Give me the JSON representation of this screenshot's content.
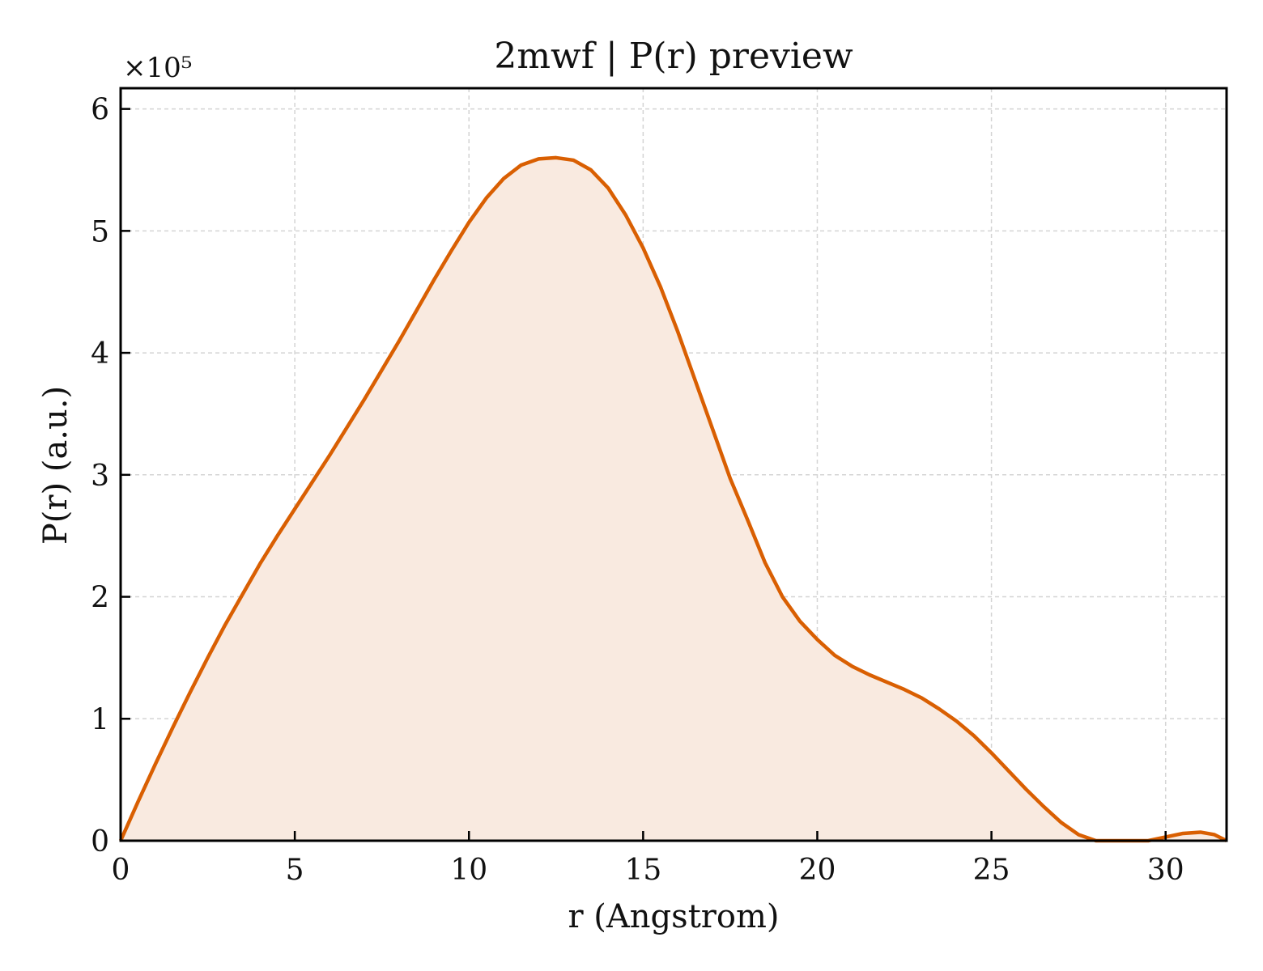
{
  "chart_data": {
    "type": "area",
    "title": "2mwf | P(r) preview",
    "xlabel": "r (Angstrom)",
    "ylabel": "P(r) (a.u.)",
    "y_scale_label": "×10⁵",
    "xlim": [
      0,
      31.75
    ],
    "ylim": [
      0,
      6.17
    ],
    "xticks": [
      0,
      5,
      10,
      15,
      20,
      25,
      30
    ],
    "yticks": [
      0,
      1,
      2,
      3,
      4,
      5,
      6
    ],
    "grid": true,
    "legend": "none",
    "line_color": "#d95f02",
    "fill_color": "#f9eae0",
    "series": [
      {
        "x": [
          0,
          0.5,
          1,
          1.5,
          2,
          2.5,
          3,
          3.5,
          4,
          4.5,
          5,
          5.5,
          6,
          6.5,
          7,
          7.5,
          8,
          8.5,
          9,
          9.5,
          10,
          10.5,
          11,
          11.5,
          12,
          12.5,
          13,
          13.5,
          14,
          14.5,
          15,
          15.5,
          16,
          16.5,
          17,
          17.5,
          18,
          18.5,
          19,
          19.5,
          20,
          20.5,
          21,
          21.5,
          22,
          22.5,
          23,
          23.5,
          24,
          24.5,
          25,
          25.5,
          26,
          26.5,
          27,
          27.5,
          28,
          28.5,
          29,
          29.5,
          30,
          30.5,
          31,
          31.4,
          31.75
        ],
        "y": [
          0,
          0.32,
          0.63,
          0.93,
          1.22,
          1.5,
          1.77,
          2.02,
          2.27,
          2.5,
          2.72,
          2.94,
          3.16,
          3.39,
          3.62,
          3.86,
          4.1,
          4.35,
          4.6,
          4.84,
          5.07,
          5.27,
          5.43,
          5.54,
          5.59,
          5.6,
          5.58,
          5.5,
          5.35,
          5.13,
          4.86,
          4.54,
          4.17,
          3.77,
          3.37,
          2.97,
          2.63,
          2.28,
          2.0,
          1.8,
          1.65,
          1.52,
          1.43,
          1.36,
          1.3,
          1.24,
          1.17,
          1.08,
          0.98,
          0.86,
          0.72,
          0.57,
          0.42,
          0.28,
          0.15,
          0.05,
          0.0,
          0.0,
          0.0,
          0.0,
          0.03,
          0.06,
          0.07,
          0.05,
          0.0
        ]
      }
    ]
  }
}
